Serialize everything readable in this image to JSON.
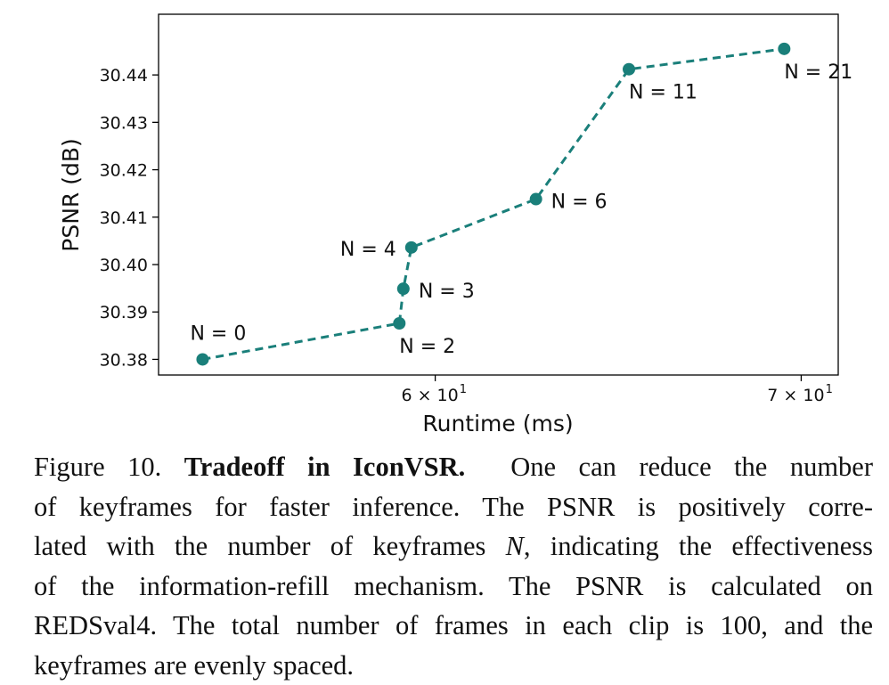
{
  "chart_data": {
    "type": "line",
    "xlabel": "Runtime (ms)",
    "ylabel": "PSNR (dB)",
    "x_scale": "log",
    "xlim": [
      53.4,
      71.1
    ],
    "ylim": [
      30.3767,
      30.4528
    ],
    "x_ticks": [
      {
        "value": 60,
        "label": "6 × 10",
        "exp": "1"
      },
      {
        "value": 70,
        "label": "7 × 10",
        "exp": "1"
      }
    ],
    "y_ticks": [
      30.38,
      30.39,
      30.4,
      30.41,
      30.42,
      30.43,
      30.44
    ],
    "y_tick_labels": [
      "30.38",
      "30.39",
      "30.40",
      "30.41",
      "30.42",
      "30.43",
      "30.44"
    ],
    "grid": false,
    "line_color": "#1a7f7a",
    "line_style": "dashed",
    "points": [
      {
        "x": 54.4,
        "y": 30.38,
        "label": "N = 0",
        "pos": "above"
      },
      {
        "x": 59.1,
        "y": 30.3876,
        "label": "N = 2",
        "pos": "below"
      },
      {
        "x": 59.2,
        "y": 30.3949,
        "label": "N = 3",
        "pos": "right"
      },
      {
        "x": 59.4,
        "y": 30.4036,
        "label": "N = 4",
        "pos": "left"
      },
      {
        "x": 62.6,
        "y": 30.4138,
        "label": "N = 6",
        "pos": "right"
      },
      {
        "x": 65.1,
        "y": 30.4412,
        "label": "N = 11",
        "pos": "below"
      },
      {
        "x": 69.5,
        "y": 30.4455,
        "label": "N = 21",
        "pos": "below"
      }
    ]
  },
  "caption": {
    "figure_label": "Figure 10.",
    "bold_title": "Tradeoff in IconVSR.",
    "line1_rest": "One can reduce the number",
    "line2": "of keyframes for faster inference. The PSNR is positively corre-",
    "line3_pre": "lated with the number of keyframes",
    "line3_var": "N",
    "line3_post": ", indicating the effectiveness",
    "line4": "of the information-refill mechanism. The PSNR is calculated on",
    "line5": "REDSval4. The total number of frames in each clip is 100, and the",
    "line6": "keyframes are evenly spaced."
  }
}
